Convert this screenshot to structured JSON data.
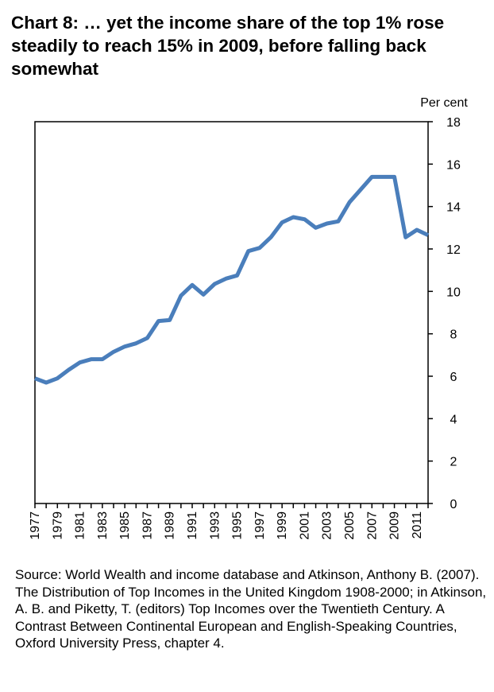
{
  "title": "Chart 8: … yet the income share of the top 1% rose steadily to reach 15% in 2009, before falling back somewhat",
  "source": "Source: World Wealth and income database and Atkinson, Anthony B. (2007). The Distribution of Top Incomes in the United Kingdom 1908-2000; in Atkinson, A. B. and Piketty, T. (editors) Top Incomes over the Twentieth Century. A Contrast Between Continental European and English-Speaking Countries, Oxford University Press, chapter 4.",
  "chart_data": {
    "type": "line",
    "title": "Chart 8: … yet the income share of the top 1% rose steadily to reach 15% in 2009, before falling back somewhat",
    "ylabel": "Per cent",
    "xlabel": "",
    "ylim": [
      0,
      18
    ],
    "yticks": [
      0,
      2,
      4,
      6,
      8,
      10,
      12,
      14,
      16,
      18
    ],
    "x": [
      1977,
      1978,
      1979,
      1980,
      1981,
      1982,
      1983,
      1984,
      1985,
      1986,
      1987,
      1988,
      1989,
      1990,
      1991,
      1992,
      1993,
      1994,
      1995,
      1996,
      1997,
      1998,
      1999,
      2000,
      2001,
      2002,
      2003,
      2004,
      2005,
      2006,
      2007,
      2008,
      2009,
      2010,
      2011,
      2012
    ],
    "xtick_labels": [
      "1977",
      "1979",
      "1981",
      "1983",
      "1985",
      "1987",
      "1989",
      "1991",
      "1993",
      "1995",
      "1997",
      "1999",
      "2001",
      "2003",
      "2005",
      "2007",
      "2009",
      "2011"
    ],
    "series": [
      {
        "name": "Top 1% income share",
        "color": "#4a7ebb",
        "values": [
          5.9,
          5.7,
          5.9,
          6.3,
          6.65,
          6.8,
          6.8,
          7.15,
          7.4,
          7.55,
          7.8,
          8.6,
          8.65,
          9.8,
          10.3,
          9.85,
          10.35,
          10.6,
          10.75,
          11.9,
          12.05,
          12.55,
          13.25,
          13.5,
          13.4,
          13.0,
          13.2,
          13.3,
          14.2,
          14.8,
          15.4,
          15.4,
          15.4,
          12.55,
          12.9,
          12.65
        ]
      }
    ],
    "grid": false,
    "legend": "none"
  }
}
